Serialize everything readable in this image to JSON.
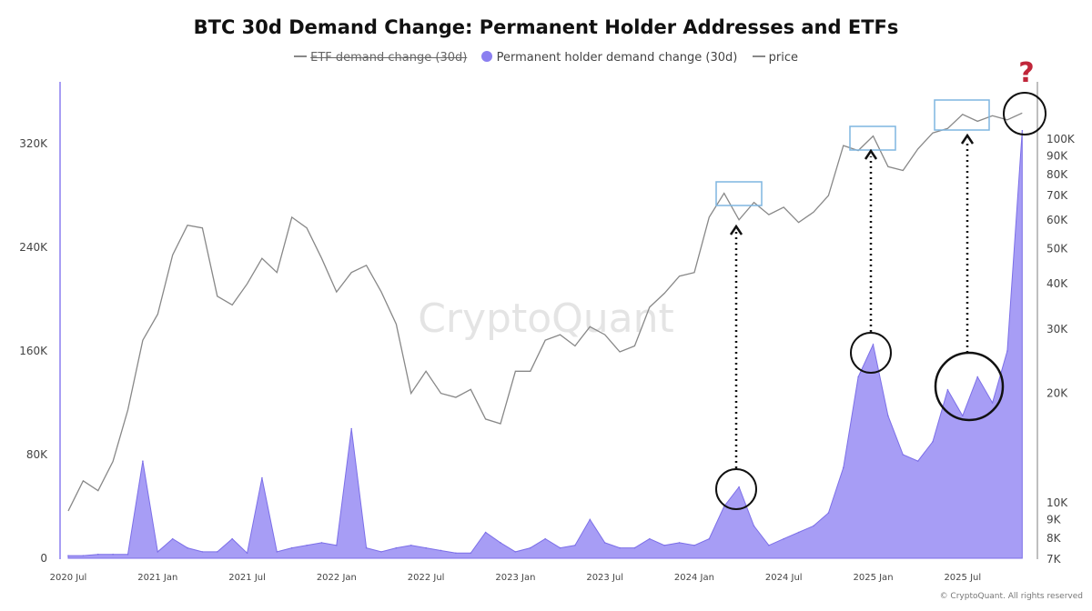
{
  "chart_data": {
    "type": "area",
    "title": "BTC 30d Demand Change: Permanent Holder Addresses and ETFs",
    "legend": [
      {
        "name": "ETF demand change (30d)",
        "hidden": true,
        "color": "#888888"
      },
      {
        "name": "Permanent holder demand change (30d)",
        "color": "#8b7ff0"
      },
      {
        "name": "price",
        "color": "#888888"
      }
    ],
    "legend_placement": "top",
    "x": [
      "2020-07",
      "2020-08",
      "2020-09",
      "2020-10",
      "2020-11",
      "2020-12",
      "2021-01",
      "2021-02",
      "2021-03",
      "2021-04",
      "2021-05",
      "2021-06",
      "2021-07",
      "2021-08",
      "2021-09",
      "2021-10",
      "2021-11",
      "2021-12",
      "2022-01",
      "2022-02",
      "2022-03",
      "2022-04",
      "2022-05",
      "2022-06",
      "2022-07",
      "2022-08",
      "2022-09",
      "2022-10",
      "2022-11",
      "2022-12",
      "2023-01",
      "2023-02",
      "2023-03",
      "2023-04",
      "2023-05",
      "2023-06",
      "2023-07",
      "2023-08",
      "2023-09",
      "2023-10",
      "2023-11",
      "2023-12",
      "2024-01",
      "2024-02",
      "2024-03",
      "2024-04",
      "2024-05",
      "2024-06",
      "2024-07",
      "2024-08",
      "2024-09",
      "2024-10",
      "2024-11",
      "2024-12",
      "2025-01",
      "2025-02",
      "2025-03",
      "2025-04",
      "2025-05",
      "2025-06",
      "2025-07",
      "2025-08",
      "2025-09",
      "2025-10",
      "2025-11"
    ],
    "series": [
      {
        "name": "Permanent holder demand change (30d)",
        "axis": "left",
        "values": [
          2,
          2,
          3,
          3,
          3,
          75,
          5,
          15,
          8,
          5,
          5,
          15,
          4,
          62,
          5,
          8,
          10,
          12,
          10,
          100,
          8,
          5,
          8,
          10,
          8,
          6,
          4,
          4,
          20,
          12,
          5,
          8,
          15,
          8,
          10,
          30,
          12,
          8,
          8,
          15,
          10,
          12,
          10,
          15,
          40,
          55,
          25,
          10,
          15,
          20,
          25,
          35,
          70,
          140,
          165,
          110,
          80,
          75,
          90,
          130,
          110,
          140,
          120,
          160,
          330
        ]
      },
      {
        "name": "price",
        "axis": "right",
        "values": [
          9.5,
          11.5,
          10.8,
          13,
          18,
          28,
          33,
          48,
          58,
          57,
          37,
          35,
          40,
          47,
          43,
          61,
          57,
          47,
          38,
          43,
          45,
          38,
          31,
          20,
          23,
          20,
          19.5,
          20.5,
          17,
          16.5,
          23,
          23,
          28,
          29,
          27,
          30.5,
          29,
          26,
          27,
          34.5,
          37.7,
          42,
          43,
          61,
          71,
          60,
          67,
          62,
          65,
          59,
          63,
          70,
          96,
          93,
          102,
          84,
          82,
          94,
          104,
          107,
          117,
          112,
          116,
          113,
          118
        ]
      }
    ],
    "x_ticks": [
      "2020 Jul",
      "2021 Jan",
      "2021 Jul",
      "2022 Jan",
      "2022 Jul",
      "2023 Jan",
      "2023 Jul",
      "2024 Jan",
      "2024 Jul",
      "2025 Jan",
      "2025 Jul"
    ],
    "y_left": {
      "ticks": [
        "0",
        "80K",
        "160K",
        "240K",
        "320K"
      ],
      "values": [
        0,
        80,
        160,
        240,
        320
      ],
      "unit": "K"
    },
    "y_right": {
      "scale": "log",
      "ticks": [
        "7K",
        "8K",
        "9K",
        "10K",
        "20K",
        "30K",
        "40K",
        "50K",
        "60K",
        "70K",
        "80K",
        "90K",
        "100K"
      ],
      "values": [
        7,
        8,
        9,
        10,
        20,
        30,
        40,
        50,
        60,
        70,
        80,
        90,
        100
      ],
      "unit": "K"
    },
    "annotations": {
      "question_mark": "?"
    }
  },
  "watermark": "CryptoQuant",
  "footer": "© CryptoQuant. All rights reserved"
}
